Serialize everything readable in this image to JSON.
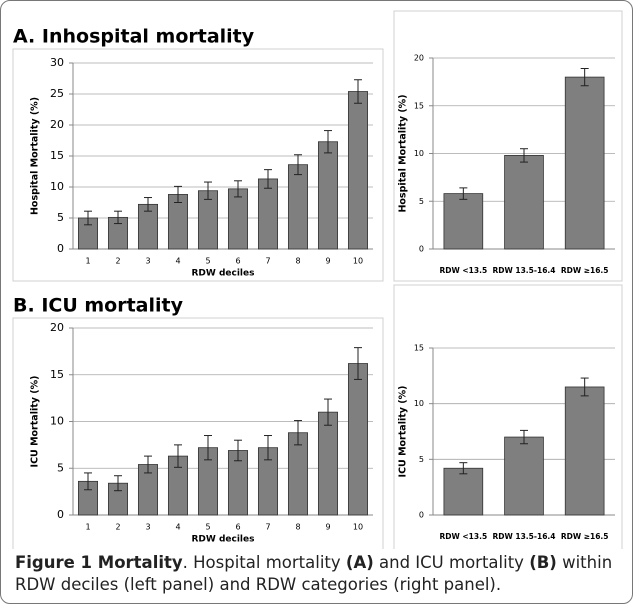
{
  "sections": [
    {
      "title": "A. Inhospital mortality"
    },
    {
      "title": "B. ICU mortality"
    }
  ],
  "caption": {
    "parts": [
      {
        "text": "Figure 1 Mortality",
        "bold": true
      },
      {
        "text": ". Hospital mortality ",
        "bold": false
      },
      {
        "text": "(A)",
        "bold": true
      },
      {
        "text": " and ICU mortality ",
        "bold": false
      },
      {
        "text": "(B)",
        "bold": true
      },
      {
        "text": " within RDW deciles (left panel) and RDW categories (right panel).",
        "bold": false
      }
    ]
  },
  "chart_data": [
    {
      "type": "bar",
      "ylabel": "Hospital Mortality (%)",
      "xlabel": "RDW deciles",
      "categories": [
        "1",
        "2",
        "3",
        "4",
        "5",
        "6",
        "7",
        "8",
        "9",
        "10"
      ],
      "values": [
        5.0,
        5.1,
        7.2,
        8.8,
        9.4,
        9.7,
        11.3,
        13.6,
        17.3,
        25.4
      ],
      "errors": [
        1.1,
        1.0,
        1.1,
        1.3,
        1.4,
        1.3,
        1.5,
        1.6,
        1.8,
        1.9
      ],
      "color": "#7f7f7f",
      "ylim": [
        0,
        30
      ],
      "yticks": [
        0,
        5,
        10,
        15,
        20,
        25,
        30
      ],
      "grid": true
    },
    {
      "type": "bar",
      "ylabel": "Hospital Mortality (%)",
      "categories": [
        "RDW <13.5",
        "RDW 13.5-16.4",
        "RDW ≥16.5"
      ],
      "values": [
        5.8,
        9.8,
        18.0
      ],
      "errors": [
        0.6,
        0.7,
        0.9
      ],
      "color": "#7f7f7f",
      "ylim": [
        0,
        20
      ],
      "yticks": [
        0,
        5,
        10,
        15,
        20
      ],
      "grid": true
    },
    {
      "type": "bar",
      "ylabel": "ICU Mortality (%)",
      "xlabel": "RDW deciles",
      "categories": [
        "1",
        "2",
        "3",
        "4",
        "5",
        "6",
        "7",
        "8",
        "9",
        "10"
      ],
      "values": [
        3.6,
        3.4,
        5.4,
        6.3,
        7.2,
        6.9,
        7.2,
        8.8,
        11.0,
        16.2
      ],
      "errors": [
        0.9,
        0.8,
        0.9,
        1.2,
        1.3,
        1.1,
        1.3,
        1.3,
        1.4,
        1.7
      ],
      "color": "#7f7f7f",
      "ylim": [
        0,
        20
      ],
      "yticks": [
        0,
        5,
        10,
        15,
        20
      ],
      "grid": true
    },
    {
      "type": "bar",
      "ylabel": "ICU Mortality (%)",
      "categories": [
        "RDW <13.5",
        "RDW 13.5-16.4",
        "RDW ≥16.5"
      ],
      "values": [
        4.2,
        7.0,
        11.5
      ],
      "errors": [
        0.5,
        0.6,
        0.8
      ],
      "color": "#7f7f7f",
      "ylim": [
        0,
        15
      ],
      "yticks": [
        0,
        5,
        10,
        15
      ],
      "grid": true
    }
  ]
}
